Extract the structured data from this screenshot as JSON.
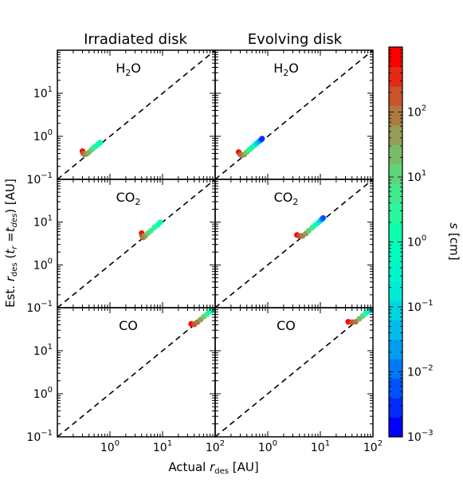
{
  "chart_data": {
    "type": "scatter",
    "column_titles": [
      "Irradiated disk",
      "Evolving disk"
    ],
    "row_labels": [
      "H₂O",
      "CO₂",
      "CO"
    ],
    "xlabel": "Actual r_des [AU]",
    "ylabel": "Est. r_des (t_r = t_des) [AU]",
    "xlim": [
      0.1,
      100
    ],
    "x_scale": "log",
    "x_ticks": [
      1,
      10,
      100
    ],
    "x_tick_labels": [
      "10^0",
      "10^1",
      "10^2"
    ],
    "reference_line": "y = x (dashed)",
    "colorbar": {
      "label": "s [cm]",
      "scale": "log",
      "range": [
        0.001,
        1000
      ],
      "ticks": [
        0.001,
        0.01,
        0.1,
        1,
        10,
        100
      ],
      "tick_labels": [
        "10^-3",
        "10^-2",
        "10^-1",
        "10^0",
        "10^1",
        "10^2"
      ],
      "colormap": "rainbow"
    },
    "panels": [
      {
        "row": 0,
        "col": 0,
        "label": "H₂O",
        "ylim": [
          0.1,
          100
        ],
        "y_ticks": [
          0.1,
          1,
          10
        ],
        "y_tick_labels": [
          "10^-1",
          "10^0",
          "10^1"
        ],
        "points": [
          {
            "x": 0.3,
            "y": 0.45,
            "s": 1000
          },
          {
            "x": 0.31,
            "y": 0.4,
            "s": 300
          },
          {
            "x": 0.33,
            "y": 0.38,
            "s": 100
          },
          {
            "x": 0.36,
            "y": 0.39,
            "s": 50
          },
          {
            "x": 0.4,
            "y": 0.43,
            "s": 20
          },
          {
            "x": 0.45,
            "y": 0.49,
            "s": 10
          },
          {
            "x": 0.5,
            "y": 0.55,
            "s": 5
          },
          {
            "x": 0.55,
            "y": 0.6,
            "s": 2
          },
          {
            "x": 0.6,
            "y": 0.66,
            "s": 1
          },
          {
            "x": 0.65,
            "y": 0.71,
            "s": 0.5
          }
        ]
      },
      {
        "row": 0,
        "col": 1,
        "label": "H₂O",
        "ylim": [
          0.1,
          100
        ],
        "y_ticks": [
          0.1,
          1,
          10
        ],
        "y_tick_labels": [
          "10^-1",
          "10^0",
          "10^1"
        ],
        "points": [
          {
            "x": 0.28,
            "y": 0.43,
            "s": 1000
          },
          {
            "x": 0.3,
            "y": 0.38,
            "s": 300
          },
          {
            "x": 0.32,
            "y": 0.36,
            "s": 100
          },
          {
            "x": 0.36,
            "y": 0.38,
            "s": 40
          },
          {
            "x": 0.4,
            "y": 0.43,
            "s": 15
          },
          {
            "x": 0.45,
            "y": 0.49,
            "s": 5
          },
          {
            "x": 0.5,
            "y": 0.55,
            "s": 1
          },
          {
            "x": 0.56,
            "y": 0.62,
            "s": 0.3
          },
          {
            "x": 0.62,
            "y": 0.69,
            "s": 0.1
          },
          {
            "x": 0.68,
            "y": 0.76,
            "s": 0.03
          },
          {
            "x": 0.74,
            "y": 0.82,
            "s": 0.008
          },
          {
            "x": 0.78,
            "y": 0.88,
            "s": 0.002
          }
        ]
      },
      {
        "row": 1,
        "col": 0,
        "label": "CO₂",
        "ylim": [
          0.1,
          100
        ],
        "y_ticks": [
          0.1,
          1,
          10
        ],
        "y_tick_labels": [
          "10^-1",
          "10^0",
          "10^1"
        ],
        "points": [
          {
            "x": 4.0,
            "y": 5.5,
            "s": 1000
          },
          {
            "x": 4.1,
            "y": 4.8,
            "s": 300
          },
          {
            "x": 4.3,
            "y": 4.4,
            "s": 100
          },
          {
            "x": 4.7,
            "y": 4.8,
            "s": 40
          },
          {
            "x": 5.3,
            "y": 5.5,
            "s": 15
          },
          {
            "x": 6.0,
            "y": 6.3,
            "s": 6
          },
          {
            "x": 7.0,
            "y": 7.5,
            "s": 2.5
          },
          {
            "x": 8.0,
            "y": 8.5,
            "s": 1
          },
          {
            "x": 9.0,
            "y": 9.8,
            "s": 0.5
          }
        ]
      },
      {
        "row": 1,
        "col": 1,
        "label": "CO₂",
        "ylim": [
          0.1,
          100
        ],
        "y_ticks": [
          0.1,
          1,
          10
        ],
        "y_tick_labels": [
          "10^-1",
          "10^0",
          "10^1"
        ],
        "points": [
          {
            "x": 3.6,
            "y": 5.0,
            "s": 1000
          },
          {
            "x": 4.0,
            "y": 4.7,
            "s": 300
          },
          {
            "x": 4.6,
            "y": 4.8,
            "s": 100
          },
          {
            "x": 5.3,
            "y": 5.4,
            "s": 40
          },
          {
            "x": 6.0,
            "y": 6.3,
            "s": 15
          },
          {
            "x": 7.0,
            "y": 7.4,
            "s": 5
          },
          {
            "x": 8.0,
            "y": 8.6,
            "s": 1.5
          },
          {
            "x": 9.0,
            "y": 9.6,
            "s": 0.4
          },
          {
            "x": 10.0,
            "y": 10.8,
            "s": 0.08
          },
          {
            "x": 10.8,
            "y": 11.8,
            "s": 0.015
          },
          {
            "x": 11.3,
            "y": 12.5,
            "s": 0.003
          }
        ]
      },
      {
        "row": 2,
        "col": 0,
        "label": "CO",
        "ylim": [
          0.1,
          100
        ],
        "y_ticks": [
          0.1,
          1,
          10
        ],
        "y_tick_labels": [
          "10^-1",
          "10^0",
          "10^1"
        ],
        "points": [
          {
            "x": 35,
            "y": 42,
            "s": 1000
          },
          {
            "x": 40,
            "y": 41,
            "s": 300
          },
          {
            "x": 46,
            "y": 46,
            "s": 100
          },
          {
            "x": 53,
            "y": 53,
            "s": 40
          },
          {
            "x": 61,
            "y": 62,
            "s": 15
          },
          {
            "x": 70,
            "y": 71,
            "s": 5
          },
          {
            "x": 80,
            "y": 81,
            "s": 2
          },
          {
            "x": 90,
            "y": 91,
            "s": 0.8
          },
          {
            "x": 98,
            "y": 99,
            "s": 0.3
          }
        ]
      },
      {
        "row": 2,
        "col": 1,
        "label": "CO",
        "ylim": [
          0.1,
          100
        ],
        "y_ticks": [
          0.1,
          1,
          10
        ],
        "y_tick_labels": [
          "10^-1",
          "10^0",
          "10^1"
        ],
        "points": [
          {
            "x": 34,
            "y": 47,
            "s": 1000
          },
          {
            "x": 40,
            "y": 46,
            "s": 300
          },
          {
            "x": 47,
            "y": 47,
            "s": 100
          },
          {
            "x": 55,
            "y": 55,
            "s": 30
          },
          {
            "x": 64,
            "y": 64,
            "s": 10
          },
          {
            "x": 72,
            "y": 73,
            "s": 3
          },
          {
            "x": 80,
            "y": 81,
            "s": 0.8
          },
          {
            "x": 88,
            "y": 89,
            "s": 0.2
          },
          {
            "x": 94,
            "y": 95,
            "s": 0.05
          }
        ]
      }
    ]
  }
}
